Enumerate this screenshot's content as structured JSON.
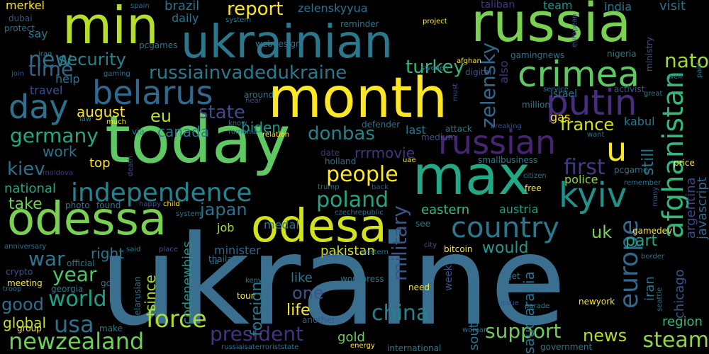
{
  "words": [
    {
      "text": "ukraine",
      "color": "#3b6f8f"
    },
    {
      "text": "today",
      "color": "#5ec962"
    },
    {
      "text": "month",
      "color": "#fde725"
    },
    {
      "text": "max",
      "color": "#22a884"
    },
    {
      "text": "russia",
      "color": "#7ad151"
    },
    {
      "text": "min",
      "color": "#b5de2b"
    },
    {
      "text": "ukrainian",
      "color": "#2a788e"
    },
    {
      "text": "odessa",
      "color": "#7ad151"
    },
    {
      "text": "odesa",
      "color": "#d2e21b"
    },
    {
      "text": "crimea",
      "color": "#5ec962"
    },
    {
      "text": "belarus",
      "color": "#31688e"
    },
    {
      "text": "putin",
      "color": "#472d7b"
    },
    {
      "text": "russian",
      "color": "#482475"
    },
    {
      "text": "day",
      "color": "#2c728e"
    },
    {
      "text": "kyiv",
      "color": "#21918c"
    },
    {
      "text": "afghanistan",
      "color": "#35b779"
    },
    {
      "text": "independence",
      "color": "#26828e"
    },
    {
      "text": "country",
      "color": "#2a788e"
    },
    {
      "text": "u",
      "color": "#fde725"
    },
    {
      "text": "europe",
      "color": "#31688e"
    },
    {
      "text": "people",
      "color": "#fde725"
    },
    {
      "text": "poland",
      "color": "#21a585"
    },
    {
      "text": "first",
      "color": "#443983"
    },
    {
      "text": "usa",
      "color": "#2c728e"
    },
    {
      "text": "world",
      "color": "#1fa187"
    },
    {
      "text": "newzealand",
      "color": "#6ece58"
    },
    {
      "text": "force",
      "color": "#a8db34"
    },
    {
      "text": "china",
      "color": "#26828e"
    },
    {
      "text": "steam",
      "color": "#8fd744"
    },
    {
      "text": "support",
      "color": "#6ece58"
    },
    {
      "text": "news",
      "color": "#b5de2b"
    },
    {
      "text": "president",
      "color": "#46337e"
    },
    {
      "text": "war",
      "color": "#2a788e"
    },
    {
      "text": "year",
      "color": "#52c569"
    },
    {
      "text": "germany",
      "color": "#22a884"
    },
    {
      "text": "new",
      "color": "#2c728e"
    },
    {
      "text": "time",
      "color": "#32648e"
    },
    {
      "text": "military",
      "color": "#39568c"
    },
    {
      "text": "zelensky",
      "color": "#31688e"
    },
    {
      "text": "nato",
      "color": "#a0da39"
    },
    {
      "text": "state",
      "color": "#3e4a89"
    },
    {
      "text": "eu",
      "color": "#b5de2b"
    },
    {
      "text": "kiev",
      "color": "#2d708e"
    },
    {
      "text": "russiainvadedukraine",
      "color": "#2a788e"
    },
    {
      "text": "report",
      "color": "#fde725"
    },
    {
      "text": "turkey",
      "color": "#35b779"
    },
    {
      "text": "security",
      "color": "#25858e"
    },
    {
      "text": "donbas",
      "color": "#26828e"
    },
    {
      "text": "france",
      "color": "#d2e21b"
    },
    {
      "text": "japan",
      "color": "#2c728e"
    },
    {
      "text": "uk",
      "color": "#7ad151"
    },
    {
      "text": "part",
      "color": "#22a884"
    },
    {
      "text": "would",
      "color": "#1f988b"
    },
    {
      "text": "foreign",
      "color": "#2a788e"
    },
    {
      "text": "life",
      "color": "#fde725"
    },
    {
      "text": "one",
      "color": "#3b528b"
    },
    {
      "text": "good",
      "color": "#2d708e"
    },
    {
      "text": "global",
      "color": "#c0df25"
    },
    {
      "text": "take",
      "color": "#6ece58"
    },
    {
      "text": "national",
      "color": "#22a884"
    },
    {
      "text": "work",
      "color": "#2c728e"
    },
    {
      "text": "august",
      "color": "#fde725"
    },
    {
      "text": "canada",
      "color": "#2a788e"
    },
    {
      "text": "biden",
      "color": "#1f988b"
    },
    {
      "text": "eastern",
      "color": "#35b779"
    },
    {
      "text": "austria",
      "color": "#1fa187"
    },
    {
      "text": "police",
      "color": "#90d743"
    },
    {
      "text": "codenewbies",
      "color": "#21918c"
    },
    {
      "text": "since",
      "color": "#a8db34"
    },
    {
      "text": "right",
      "color": "#2a788e"
    },
    {
      "text": "minister",
      "color": "#31688e"
    },
    {
      "text": "pakistan",
      "color": "#d2e21b"
    },
    {
      "text": "southafrica",
      "color": "#2c728e"
    },
    {
      "text": "saudiarabia",
      "color": "#2c728e"
    },
    {
      "text": "chicago",
      "color": "#3b528b"
    },
    {
      "text": "region",
      "color": "#35b779"
    },
    {
      "text": "argentina",
      "color": "#3f4788"
    },
    {
      "text": "javascript",
      "color": "#31688e"
    },
    {
      "text": "still",
      "color": "#2a788e"
    },
    {
      "text": "iran",
      "color": "#2a788e"
    },
    {
      "text": "rrrmovie",
      "color": "#46337e"
    },
    {
      "text": "help",
      "color": "#2c728e"
    },
    {
      "text": "travel",
      "color": "#3b528b"
    },
    {
      "text": "say",
      "color": "#2a788e"
    },
    {
      "text": "merkel",
      "color": "#fde725"
    },
    {
      "text": "brazil",
      "color": "#2c728e"
    },
    {
      "text": "daily",
      "color": "#2a788e"
    },
    {
      "text": "zelenskyyua",
      "color": "#2c728e"
    },
    {
      "text": "india",
      "color": "#2a788e"
    },
    {
      "text": "team",
      "color": "#1f988b"
    },
    {
      "text": "visit",
      "color": "#2c728e"
    },
    {
      "text": "gas",
      "color": "#fde725"
    },
    {
      "text": "kabul",
      "color": "#2a788e"
    },
    {
      "text": "israel",
      "color": "#2c728e"
    },
    {
      "text": "top",
      "color": "#fde725"
    },
    {
      "text": "last",
      "color": "#2a788e"
    },
    {
      "text": "medal",
      "color": "#2c728e"
    },
    {
      "text": "job",
      "color": "#a8db34"
    },
    {
      "text": "like",
      "color": "#2a788e"
    },
    {
      "text": "week",
      "color": "#3b528b"
    },
    {
      "text": "also",
      "color": "#46337e"
    },
    {
      "text": "pcgames",
      "color": "#2a788e"
    },
    {
      "text": "webdesign",
      "color": "#2c728e"
    },
    {
      "text": "reminder",
      "color": "#2a788e"
    },
    {
      "text": "taliban",
      "color": "#46337e"
    },
    {
      "text": "gamingnews",
      "color": "#2c728e"
    },
    {
      "text": "nigeria",
      "color": "#2a788e"
    },
    {
      "text": "ministry",
      "color": "#3b528b"
    },
    {
      "text": "paid",
      "color": "#2a788e"
    },
    {
      "text": "european",
      "color": "#3b528b"
    },
    {
      "text": "spain",
      "color": "#31688e"
    },
    {
      "text": "project",
      "color": "#fde725"
    },
    {
      "text": "system",
      "color": "#2a788e"
    },
    {
      "text": "dubai",
      "color": "#3b528b"
    },
    {
      "text": "protect",
      "color": "#2c728e"
    },
    {
      "text": "iraq",
      "color": "#2a788e"
    },
    {
      "text": "join",
      "color": "#3b528b"
    },
    {
      "text": "gaming",
      "color": "#2c728e"
    },
    {
      "text": "around",
      "color": "#2a788e"
    },
    {
      "text": "near",
      "color": "#3b528b"
    },
    {
      "text": "service",
      "color": "#2c728e"
    },
    {
      "text": "activist",
      "color": "#3b528b"
    },
    {
      "text": "great",
      "color": "#2a788e"
    },
    {
      "text": "well",
      "color": "#2c728e"
    },
    {
      "text": "million",
      "color": "#2a788e"
    },
    {
      "text": "digital",
      "color": "#3b528b"
    },
    {
      "text": "afghan",
      "color": "#fde725"
    },
    {
      "text": "sweden",
      "color": "#2c728e"
    },
    {
      "text": "must",
      "color": "#3b528b"
    },
    {
      "text": "law",
      "color": "#2a788e"
    },
    {
      "text": "much",
      "color": "#fde725"
    },
    {
      "text": "know",
      "color": "#2c728e"
    },
    {
      "text": "romania",
      "color": "#2a788e"
    },
    {
      "text": "relation",
      "color": "#fde725"
    },
    {
      "text": "defender",
      "color": "#2c728e"
    },
    {
      "text": "attack",
      "color": "#2a788e"
    },
    {
      "text": "breaking",
      "color": "#3b528b"
    },
    {
      "text": "want",
      "color": "#2c728e"
    },
    {
      "text": "via",
      "color": "#2a788e"
    },
    {
      "text": "medium",
      "color": "#3b528b"
    },
    {
      "text": "date",
      "color": "#46337e"
    },
    {
      "text": "holland",
      "color": "#2c728e"
    },
    {
      "text": "uae",
      "color": "#fde725"
    },
    {
      "text": "smallbusiness",
      "color": "#2a788e"
    },
    {
      "text": "moldova",
      "color": "#46337e"
    },
    {
      "text": "death",
      "color": "#3b528b"
    },
    {
      "text": "trump",
      "color": "#2c728e"
    },
    {
      "text": "back",
      "color": "#3b528b"
    },
    {
      "text": "citizen",
      "color": "#2a788e"
    },
    {
      "text": "free",
      "color": "#fde725"
    },
    {
      "text": "pcgame",
      "color": "#2c728e"
    },
    {
      "text": "price",
      "color": "#fde725"
    },
    {
      "text": "remember",
      "color": "#2a788e"
    },
    {
      "text": "many",
      "color": "#3b528b"
    },
    {
      "text": "photo",
      "color": "#2c728e"
    },
    {
      "text": "found",
      "color": "#2a788e"
    },
    {
      "text": "happy",
      "color": "#3b528b"
    },
    {
      "text": "child",
      "color": "#fde725"
    },
    {
      "text": "system",
      "color": "#2a788e"
    },
    {
      "text": "czechrepublic",
      "color": "#2c728e"
    },
    {
      "text": "gamedev",
      "color": "#fde725"
    },
    {
      "text": "see",
      "color": "#2a788e"
    },
    {
      "text": "city",
      "color": "#3b528b"
    },
    {
      "text": "bitcoin",
      "color": "#fde725"
    },
    {
      "text": "border",
      "color": "#2a788e"
    },
    {
      "text": "anniversary",
      "color": "#2c728e"
    },
    {
      "text": "official",
      "color": "#2a788e"
    },
    {
      "text": "crypto",
      "color": "#3b528b"
    },
    {
      "text": "meeting",
      "color": "#fde725"
    },
    {
      "text": "troop",
      "color": "#2c728e"
    },
    {
      "text": "georgia",
      "color": "#2a788e"
    },
    {
      "text": "go",
      "color": "#2c728e"
    },
    {
      "text": "said",
      "color": "#2a788e"
    },
    {
      "text": "place",
      "color": "#3b528b"
    },
    {
      "text": "thailand",
      "color": "#2c728e"
    },
    {
      "text": "ua",
      "color": "#2a788e"
    },
    {
      "text": "next",
      "color": "#3b528b"
    },
    {
      "text": "western",
      "color": "#2c728e"
    },
    {
      "text": "kenya",
      "color": "#2a788e"
    },
    {
      "text": "tour",
      "color": "#fde725"
    },
    {
      "text": "wordpress",
      "color": "#2c728e"
    },
    {
      "text": "need",
      "color": "#fde725"
    },
    {
      "text": "get",
      "color": "#2a788e"
    },
    {
      "text": "newyork",
      "color": "#fde725"
    },
    {
      "text": "seattle",
      "color": "#2c728e"
    },
    {
      "text": "parade",
      "color": "#2a788e"
    },
    {
      "text": "issue",
      "color": "#3b528b"
    },
    {
      "text": "belarusian",
      "color": "#2c728e"
    },
    {
      "text": "group",
      "color": "#fde725"
    },
    {
      "text": "make",
      "color": "#2a788e"
    },
    {
      "text": "another",
      "color": "#3b528b"
    },
    {
      "text": "gold",
      "color": "#6ece58"
    },
    {
      "text": "energy",
      "color": "#fde725"
    },
    {
      "text": "international",
      "color": "#2a788e"
    },
    {
      "text": "woman",
      "color": "#2c728e"
    },
    {
      "text": "government",
      "color": "#2a788e"
    },
    {
      "text": "russiaisaterroriststate",
      "color": "#2c728e"
    }
  ]
}
